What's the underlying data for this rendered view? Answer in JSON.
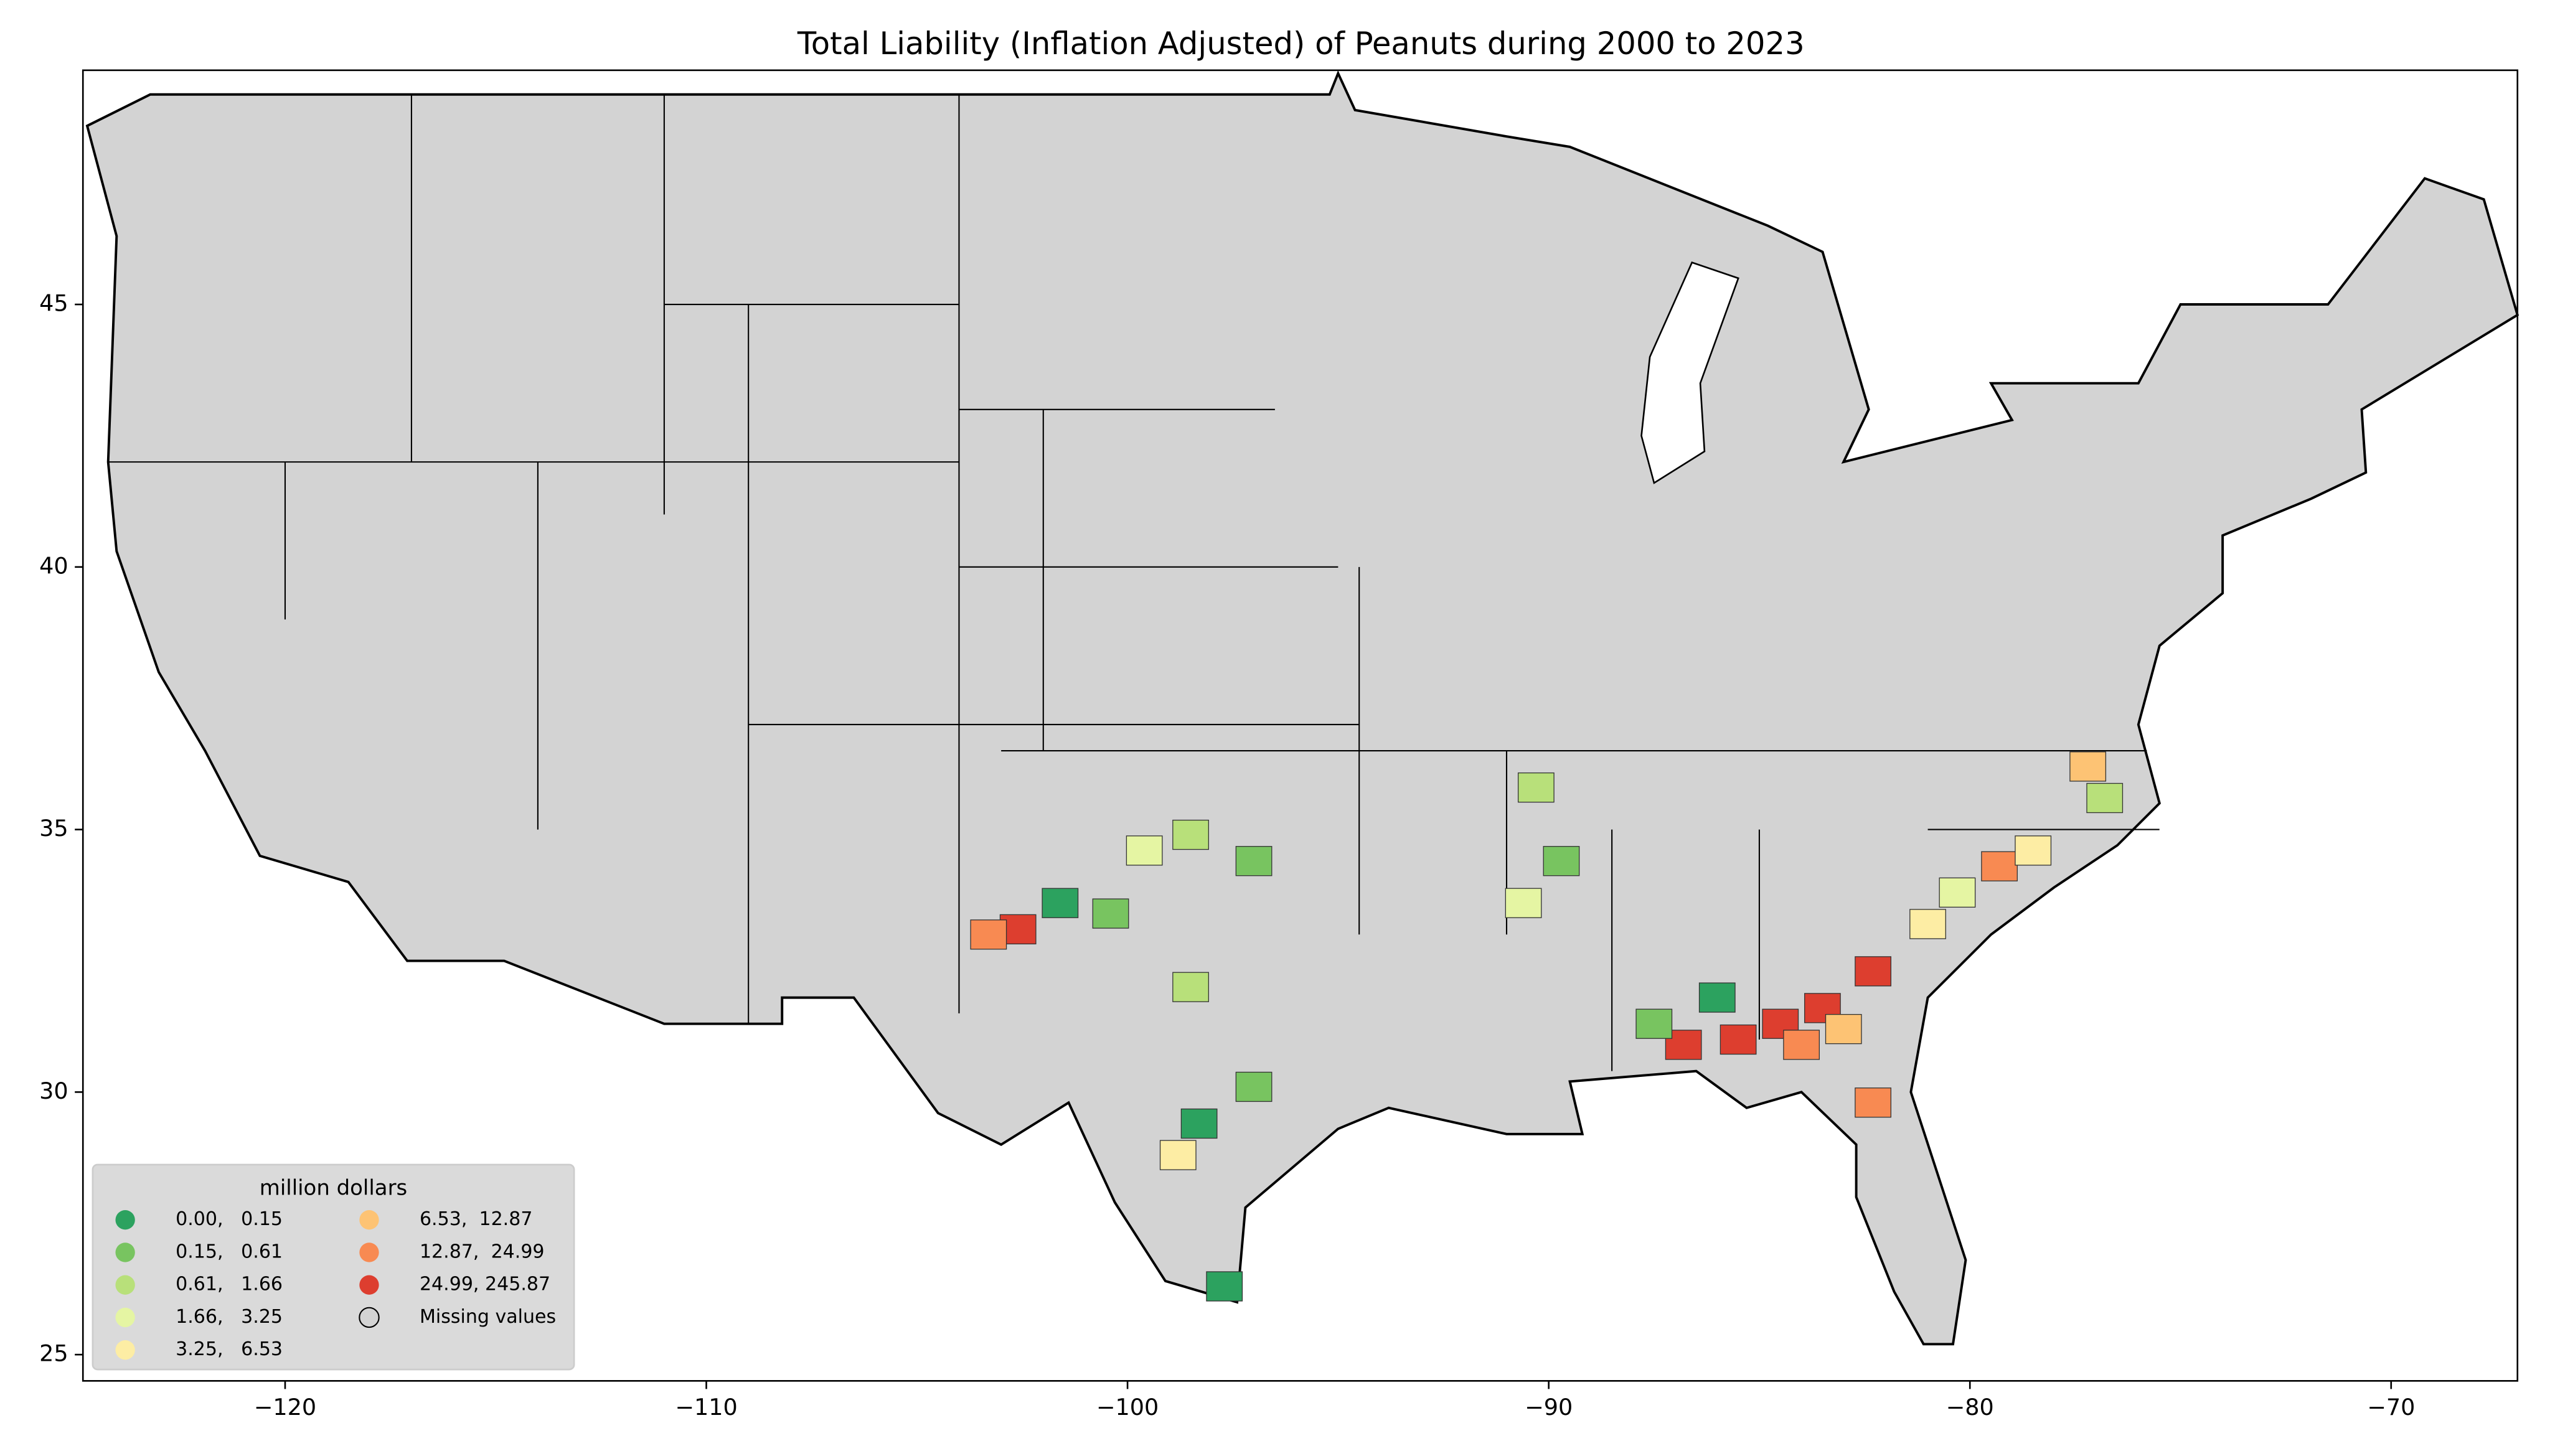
{
  "chart_data": {
    "type": "map",
    "title": "Total Liability  (Inflation Adjusted) of Peanuts during 2000 to 2023",
    "xlim": [
      -124.8,
      -67.0
    ],
    "ylim": [
      24.5,
      49.46
    ],
    "xticks": [
      {
        "value": -120,
        "label": "−120"
      },
      {
        "value": -110,
        "label": "−110"
      },
      {
        "value": -100,
        "label": "−100"
      },
      {
        "value": -90,
        "label": "−90"
      },
      {
        "value": -80,
        "label": "−80"
      },
      {
        "value": -70,
        "label": "−70"
      }
    ],
    "yticks": [
      25,
      30,
      35,
      40,
      45
    ],
    "legend": {
      "title": "million dollars",
      "position": "lower left",
      "items": [
        {
          "label": "0.00,   0.15",
          "color": "#2ca25f"
        },
        {
          "label": "0.15,   0.61",
          "color": "#78c460"
        },
        {
          "label": "0.61,   1.66",
          "color": "#b8e07a"
        },
        {
          "label": "1.66,   3.25",
          "color": "#e5f5a3"
        },
        {
          "label": "3.25,   6.53",
          "color": "#fdeda4"
        },
        {
          "label": "6.53,  12.87",
          "color": "#fdc374"
        },
        {
          "label": "12.87,  24.99",
          "color": "#f88a52"
        },
        {
          "label": "24.99, 245.87",
          "color": "#dd3e2f"
        },
        {
          "label": "Missing values",
          "color": "#d3d3d3"
        }
      ]
    }
  }
}
